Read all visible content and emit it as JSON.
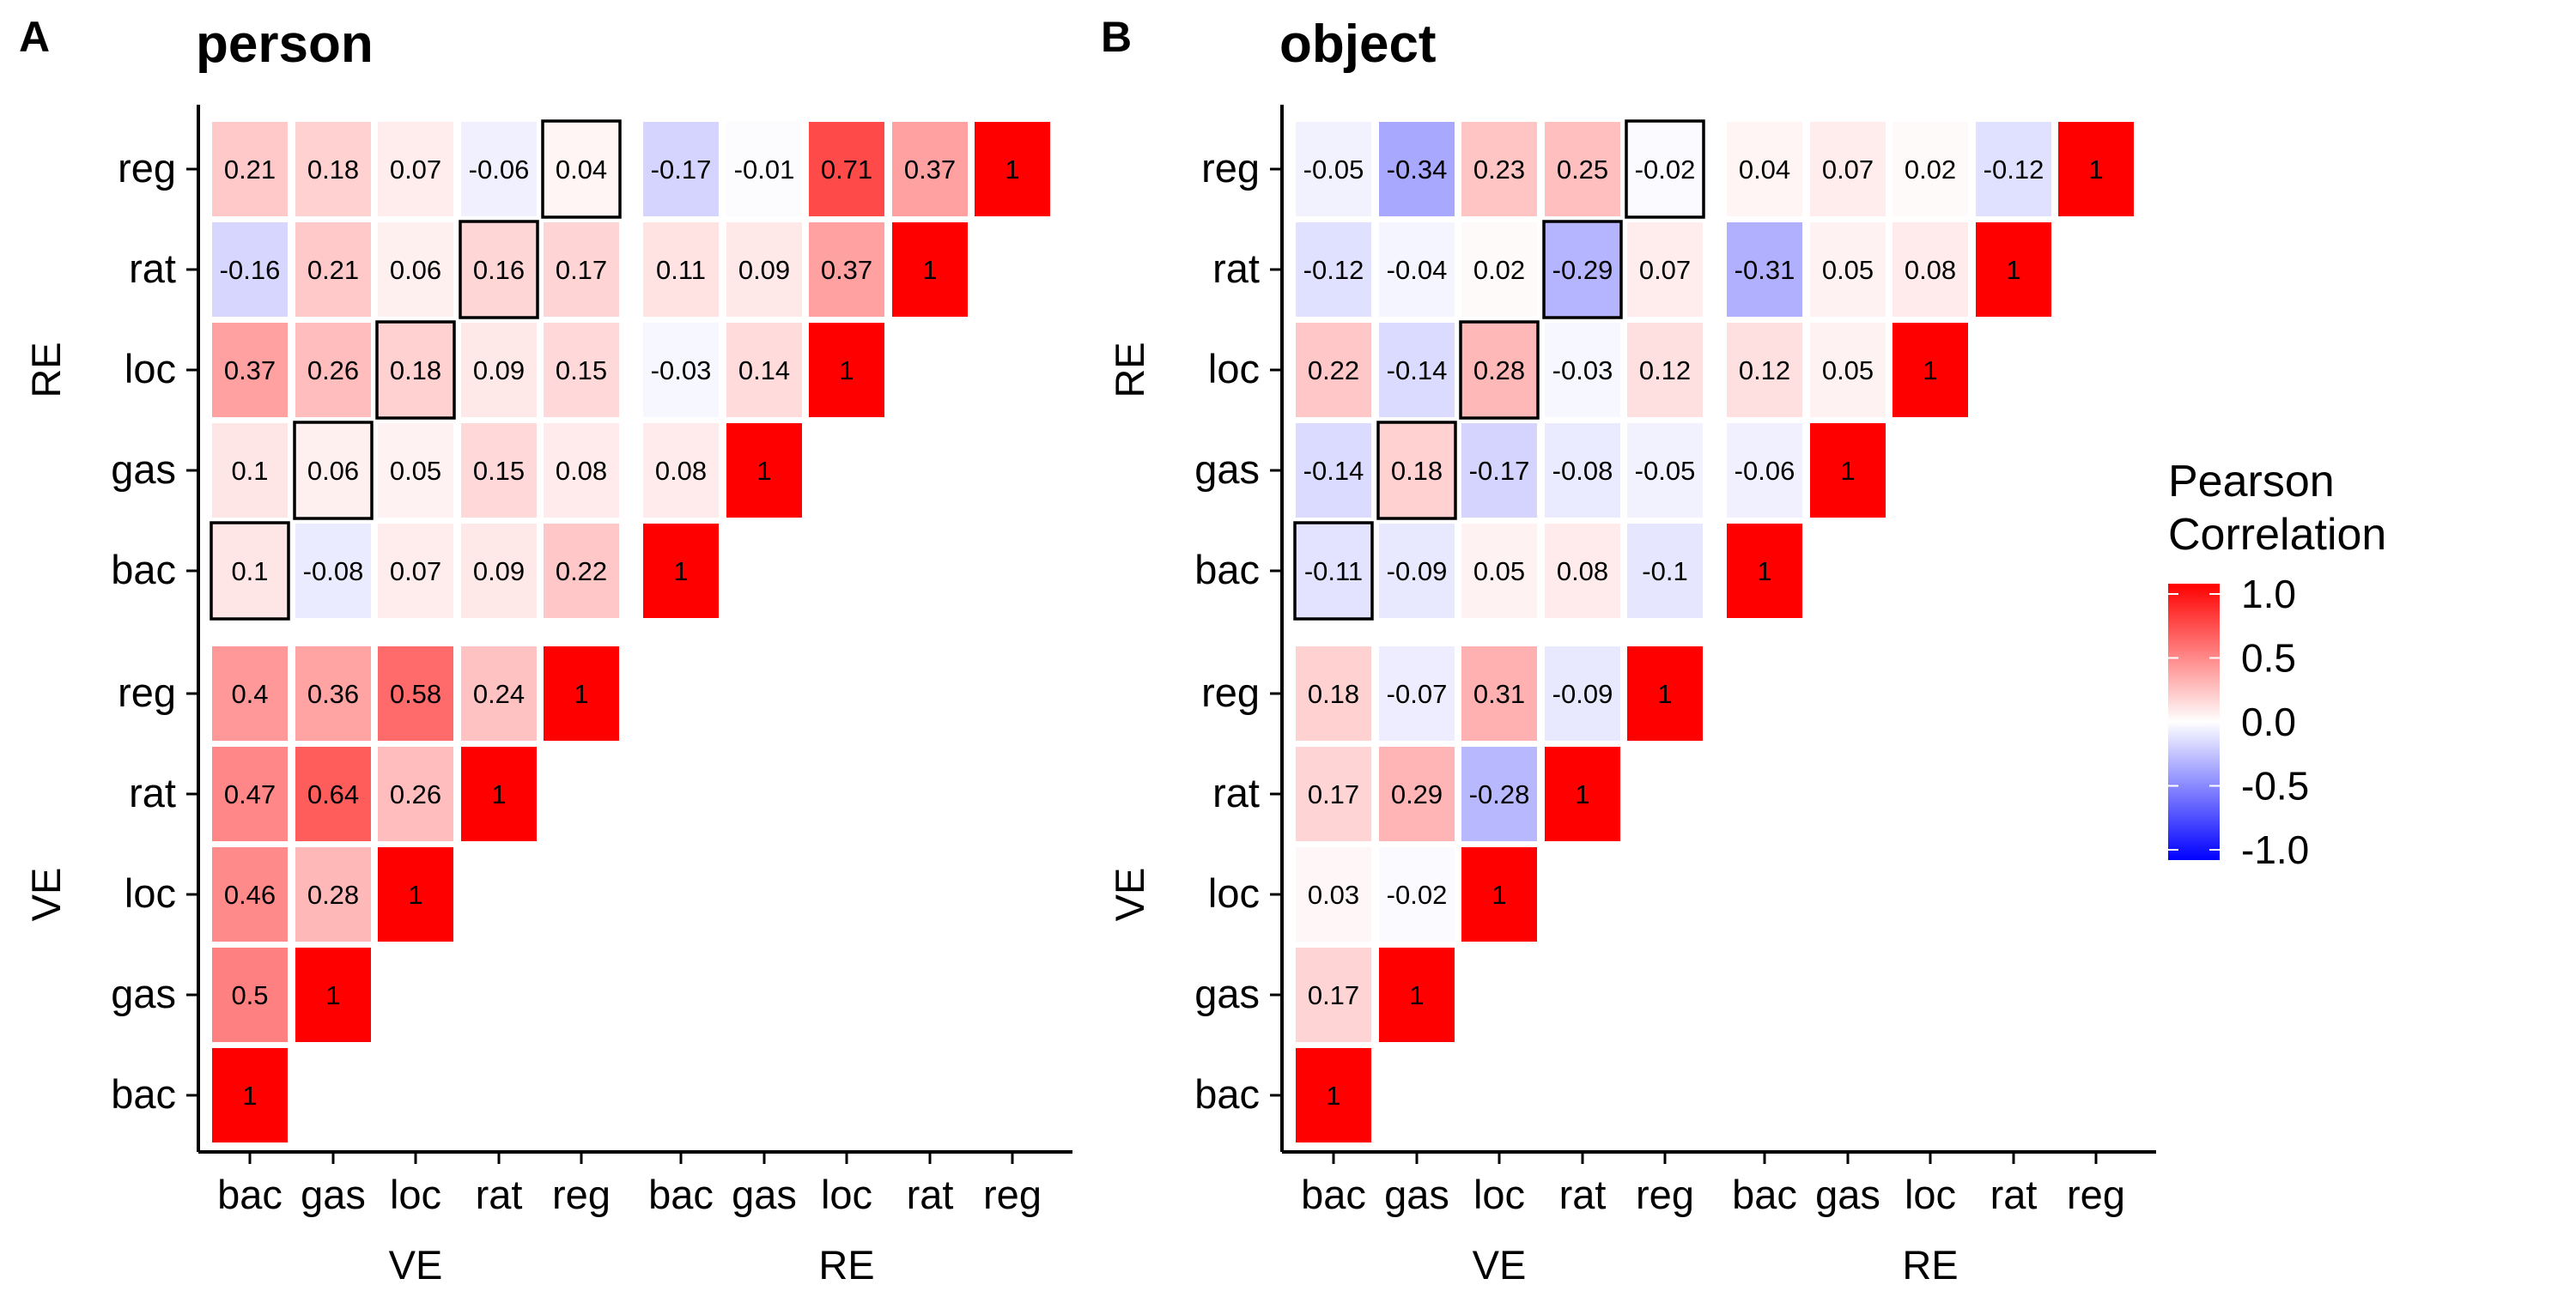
{
  "panels": [
    {
      "letter": "A",
      "title": "person",
      "chart_data": {
        "type": "heatmap",
        "variables": [
          "bac",
          "gas",
          "loc",
          "rat",
          "reg"
        ],
        "groups": [
          "VE",
          "RE"
        ],
        "x_tick_labels": [
          "bac",
          "gas",
          "loc",
          "rat",
          "reg",
          "bac",
          "gas",
          "loc",
          "rat",
          "reg"
        ],
        "y_tick_labels": [
          "bac",
          "gas",
          "loc",
          "rat",
          "reg",
          "bac",
          "gas",
          "loc",
          "rat",
          "reg"
        ],
        "x_group_labels": [
          "VE",
          "RE"
        ],
        "y_group_labels": [
          "VE",
          "RE"
        ],
        "rows": [
          [
            "1"
          ],
          [
            "0.5",
            "1"
          ],
          [
            "0.46",
            "0.28",
            "1"
          ],
          [
            "0.47",
            "0.64",
            "0.26",
            "1"
          ],
          [
            "0.4",
            "0.36",
            "0.58",
            "0.24",
            "1"
          ],
          [
            "0.1",
            "-0.08",
            "0.07",
            "0.09",
            "0.22",
            "1"
          ],
          [
            "0.1",
            "0.06",
            "0.05",
            "0.15",
            "0.08",
            "0.08",
            "1"
          ],
          [
            "0.37",
            "0.26",
            "0.18",
            "0.09",
            "0.15",
            "-0.03",
            "0.14",
            "1"
          ],
          [
            "-0.16",
            "0.21",
            "0.06",
            "0.16",
            "0.17",
            "0.11",
            "0.09",
            "0.37",
            "1"
          ],
          [
            "0.21",
            "0.18",
            "0.07",
            "-0.06",
            "0.04",
            "-0.17",
            "-0.01",
            "0.71",
            "0.37",
            "1"
          ]
        ],
        "highlighted_diagonal": "VE-RE same variable"
      }
    },
    {
      "letter": "B",
      "title": "object",
      "chart_data": {
        "type": "heatmap",
        "variables": [
          "bac",
          "gas",
          "loc",
          "rat",
          "reg"
        ],
        "groups": [
          "VE",
          "RE"
        ],
        "x_tick_labels": [
          "bac",
          "gas",
          "loc",
          "rat",
          "reg",
          "bac",
          "gas",
          "loc",
          "rat",
          "reg"
        ],
        "y_tick_labels": [
          "bac",
          "gas",
          "loc",
          "rat",
          "reg",
          "bac",
          "gas",
          "loc",
          "rat",
          "reg"
        ],
        "x_group_labels": [
          "VE",
          "RE"
        ],
        "y_group_labels": [
          "VE",
          "RE"
        ],
        "rows": [
          [
            "1"
          ],
          [
            "0.17",
            "1"
          ],
          [
            "0.03",
            "-0.02",
            "1"
          ],
          [
            "0.17",
            "0.29",
            "-0.28",
            "1"
          ],
          [
            "0.18",
            "-0.07",
            "0.31",
            "-0.09",
            "1"
          ],
          [
            "-0.11",
            "-0.09",
            "0.05",
            "0.08",
            "-0.1",
            "1"
          ],
          [
            "-0.14",
            "0.18",
            "-0.17",
            "-0.08",
            "-0.05",
            "-0.06",
            "1"
          ],
          [
            "0.22",
            "-0.14",
            "0.28",
            "-0.03",
            "0.12",
            "0.12",
            "0.05",
            "1"
          ],
          [
            "-0.12",
            "-0.04",
            "0.02",
            "-0.29",
            "0.07",
            "-0.31",
            "0.05",
            "0.08",
            "1"
          ],
          [
            "-0.05",
            "-0.34",
            "0.23",
            "0.25",
            "-0.02",
            "0.04",
            "0.07",
            "0.02",
            "-0.12",
            "1"
          ]
        ],
        "highlighted_diagonal": "VE-RE same variable"
      }
    }
  ],
  "legend": {
    "title_line1": "Pearson",
    "title_line2": "Correlation",
    "ticks": [
      "1.0",
      "0.5",
      "0.0",
      "-0.5",
      "-1.0"
    ],
    "colors": {
      "high": "#ff0000",
      "mid": "#ffffff",
      "low": "#0000ff"
    },
    "range": [
      -1,
      1
    ]
  }
}
